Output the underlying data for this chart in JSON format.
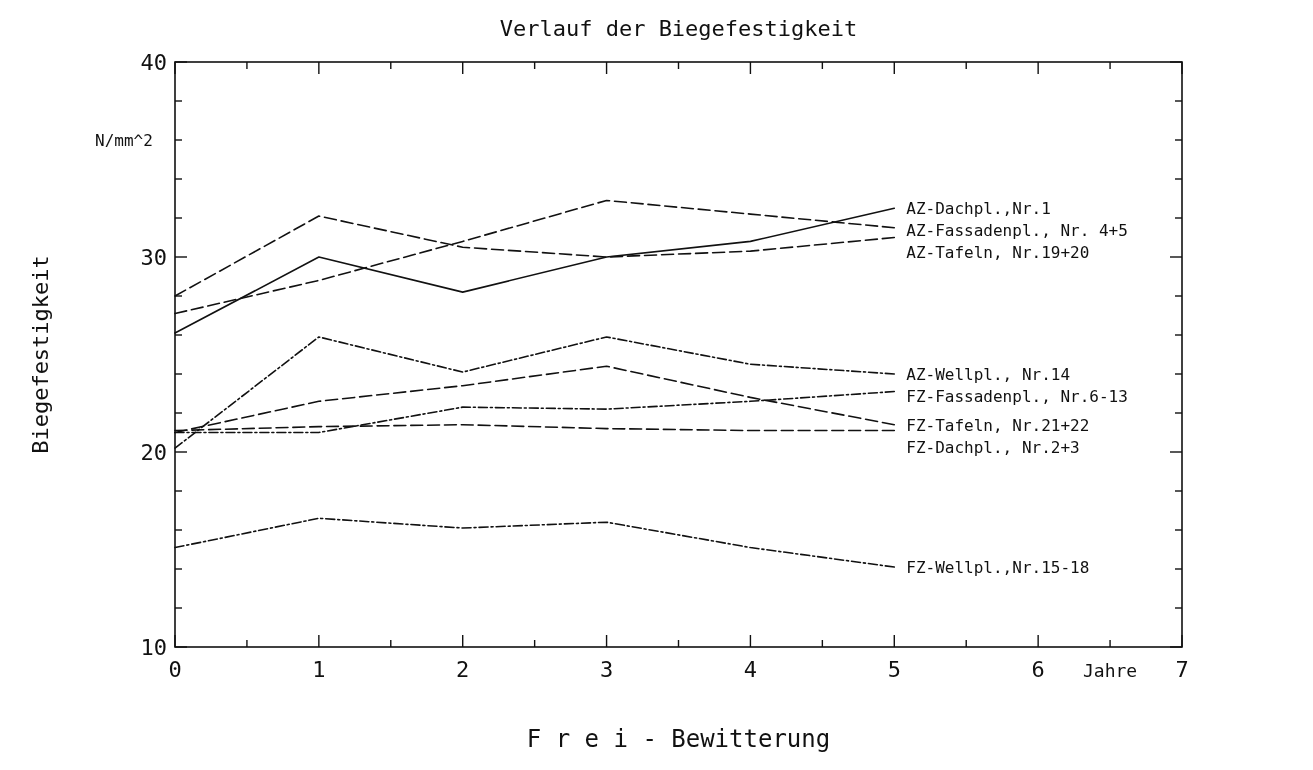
{
  "chart_data": {
    "type": "line",
    "title": "Verlauf der Biegefestigkeit",
    "xlabel": "F r e i - Bewitterung",
    "ylabel": "Biegefestigkeit",
    "annotations": [
      "N/mm^2",
      "Jahre"
    ],
    "x": [
      0,
      1,
      2,
      3,
      4,
      5
    ],
    "xlim": [
      0,
      7
    ],
    "xticks": [
      0,
      {
        "value": 0.5,
        "label": null
      },
      1,
      {
        "value": 1.5,
        "label": null
      },
      2,
      {
        "value": 2.5,
        "label": null
      },
      3,
      {
        "value": 3.5,
        "label": null
      },
      4,
      {
        "value": 4.5,
        "label": null
      },
      5,
      {
        "value": 5.5,
        "label": null
      },
      6,
      {
        "value": 6.5,
        "label": null
      },
      7
    ],
    "ylim": [
      10,
      40
    ],
    "yticks": [
      10,
      {
        "value": 12,
        "label": null
      },
      {
        "value": 14,
        "label": null
      },
      {
        "value": 16,
        "label": null
      },
      {
        "value": 18,
        "label": null
      },
      20,
      {
        "value": 22,
        "label": null
      },
      {
        "value": 24,
        "label": null
      },
      {
        "value": 26,
        "label": null
      },
      {
        "value": 28,
        "label": null
      },
      30,
      {
        "value": 32,
        "label": null
      },
      {
        "value": 34,
        "label": null
      },
      {
        "value": 36,
        "label": null
      },
      {
        "value": 38,
        "label": null
      },
      40
    ],
    "grid": false,
    "legend": false,
    "marker": "none",
    "series": [
      {
        "name": "AZ-Dachpl.,Nr.1",
        "color": "#111111",
        "line_style": "solid",
        "values": [
          26.1,
          30,
          28.2,
          30,
          30.8,
          32.5
        ]
      },
      {
        "name": "AZ-Fassadenpl., Nr. 4+5",
        "color": "#111111",
        "line_style": "dashed",
        "values": [
          27.1,
          28.8,
          30.8,
          32.9,
          32.2,
          31.5
        ]
      },
      {
        "name": "AZ-Tafeln, Nr.19+20",
        "color": "#111111",
        "line_style": "dashed",
        "values": [
          28,
          32.1,
          30.5,
          30,
          30.3,
          31
        ]
      },
      {
        "name": "AZ-Wellpl., Nr.14",
        "color": "#111111",
        "line_style": "dotted",
        "values": [
          20.2,
          25.9,
          24.1,
          25.9,
          24.5,
          24
        ]
      },
      {
        "name": "FZ-Fassadenpl., Nr.6-13",
        "color": "#111111",
        "line_style": "dotted",
        "values": [
          21,
          21,
          22.3,
          22.2,
          22.6,
          23.1
        ]
      },
      {
        "name": "FZ-Tafeln, Nr.21+22",
        "color": "#111111",
        "line_style": "dashed",
        "values": [
          21,
          22.6,
          23.4,
          24.4,
          22.8,
          21.4
        ]
      },
      {
        "name": "FZ-Dachpl., Nr.2+3",
        "color": "#111111",
        "line_style": "dashed",
        "values": [
          21.1,
          21.3,
          21.4,
          21.2,
          21.1,
          21.1
        ]
      },
      {
        "name": "FZ-Wellpl.,Nr.15-18",
        "color": "#111111",
        "line_style": "dotted",
        "values": [
          15.1,
          16.6,
          16.1,
          16.4,
          15.1,
          14.1
        ]
      }
    ]
  }
}
